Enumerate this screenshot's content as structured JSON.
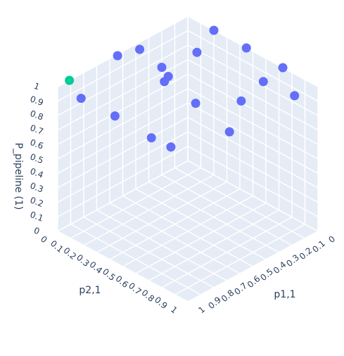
{
  "chart_data": {
    "type": "scatter3d",
    "xlabel": "p1,1",
    "ylabel": "p2,1",
    "zlabel": "P_pipeline (1)",
    "xlim": [
      0,
      1
    ],
    "ylim": [
      0,
      1
    ],
    "zlim": [
      0,
      1
    ],
    "xticks": [
      0,
      0.1,
      0.2,
      0.3,
      0.4,
      0.5,
      0.6,
      0.7,
      0.8,
      0.9,
      1
    ],
    "yticks": [
      0,
      0.1,
      0.2,
      0.3,
      0.4,
      0.5,
      0.6,
      0.7,
      0.8,
      0.9,
      1
    ],
    "zticks": [
      0,
      0.1,
      0.2,
      0.3,
      0.4,
      0.5,
      0.6,
      0.7,
      0.8,
      0.9,
      1
    ],
    "grid": true,
    "series": [
      {
        "color": "#636efa",
        "x": [
          0.89,
          0.55,
          0.42,
          0.68,
          0.36,
          0.4,
          0.4,
          0.49,
          0.48,
          0.28,
          0.17,
          0.0,
          0.0,
          0.14,
          0.25,
          0.02,
          0.0,
          0.0
        ],
        "y": [
          0.07,
          0.01,
          0.05,
          0.12,
          0.16,
          0.25,
          0.22,
          0.21,
          0.35,
          0.34,
          0.24,
          0.2,
          0.45,
          0.55,
          0.57,
          0.6,
          0.73,
          0.82
        ],
        "z": [
          0.9,
          1.0,
          1.0,
          0.7,
          0.9,
          0.9,
          0.85,
          0.5,
          0.5,
          0.7,
          0.95,
          1.0,
          1.0,
          0.75,
          0.6,
          0.85,
          1.0,
          0.85
        ]
      },
      {
        "color": "#00cc96",
        "x": [
          0.91
        ],
        "y": [
          0.0
        ],
        "z": [
          1.0
        ]
      }
    ]
  }
}
